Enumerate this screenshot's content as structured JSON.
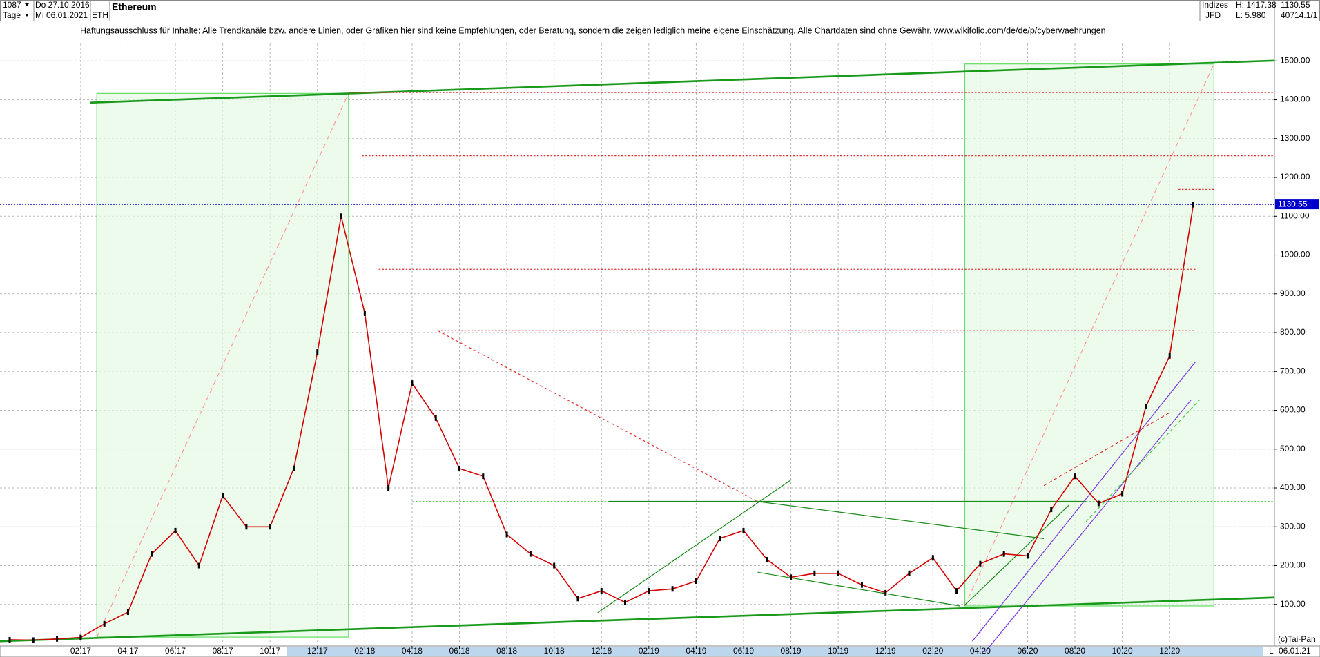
{
  "header": {
    "bars": "1087",
    "from": "Do 27.10.2016",
    "period": "Tage",
    "to": "Mi 06.01.2021",
    "symbol": "ETH",
    "name": "Ethereum",
    "group": "Indizes",
    "source": "JFD",
    "high": "H: 1417.38",
    "low": "L: 5.980",
    "last": "1130.55",
    "volume": "40714.1/1"
  },
  "disclaimer": "Haftungsausschluss für Inhalte: Alle Trendkanäle bzw. andere Linien, oder Grafiken hier sind keine Empfehlungen, oder Beratung, sondern die zeigen lediglich meine eigene Einschätzung. Alle Chartdaten sind ohne Gewähr.  www.wikifolio.com/de/de/p/cyberwaehrungen",
  "footer": {
    "copyright": "(c)Tai-Pan",
    "date": "06.01.21",
    "scale": "L"
  },
  "chart_data": {
    "type": "line",
    "color": "#d40000",
    "x": [
      "11.16",
      "12.16",
      "01.17",
      "02.17",
      "03.17",
      "04.17",
      "05.17",
      "06.17",
      "07.17",
      "08.17",
      "09.17",
      "10.17",
      "11.17",
      "12.17",
      "01.18",
      "02.18",
      "03.18",
      "04.18",
      "05.18",
      "06.18",
      "07.18",
      "08.18",
      "09.18",
      "10.18",
      "11.18",
      "12.18",
      "01.19",
      "02.19",
      "03.19",
      "04.19",
      "05.19",
      "06.19",
      "07.19",
      "08.19",
      "09.19",
      "10.19",
      "11.19",
      "12.19",
      "01.20",
      "02.20",
      "03.20",
      "04.20",
      "05.20",
      "06.20",
      "07.20",
      "08.20",
      "09.20",
      "10.20",
      "11.20",
      "12.20",
      "01.21"
    ],
    "values": [
      9,
      8,
      11,
      15,
      50,
      80,
      230,
      290,
      200,
      380,
      300,
      300,
      450,
      750,
      1100,
      850,
      400,
      670,
      580,
      450,
      430,
      280,
      230,
      200,
      115,
      135,
      105,
      135,
      140,
      160,
      270,
      290,
      215,
      170,
      180,
      180,
      150,
      130,
      180,
      220,
      135,
      205,
      230,
      225,
      345,
      430,
      360,
      385,
      610,
      740,
      1130
    ],
    "xticks": [
      "02.17",
      "04.17",
      "06.17",
      "08.17",
      "10.17",
      "12.17",
      "02.18",
      "04.18",
      "06.18",
      "08.18",
      "10.18",
      "12.18",
      "02.19",
      "04.19",
      "06.19",
      "08.19",
      "10.19",
      "12.19",
      "02.20",
      "04.20",
      "06.20",
      "08.20",
      "10.20",
      "12.20"
    ],
    "ylim": [
      0,
      1545
    ],
    "yticks": [
      {
        "value": 100,
        "label": "100.00"
      },
      {
        "value": 200,
        "label": "200.00"
      },
      {
        "value": 300,
        "label": "300.00"
      },
      {
        "value": 400,
        "label": "400.00"
      },
      {
        "value": 500,
        "label": "500.00"
      },
      {
        "value": 600,
        "label": "600.00"
      },
      {
        "value": 700,
        "label": "700.00"
      },
      {
        "value": 800,
        "label": "800.00"
      },
      {
        "value": 900,
        "label": "900.00"
      },
      {
        "value": 1000,
        "label": "1000.00"
      },
      {
        "value": 1100,
        "label": "1100.00"
      },
      {
        "value": 1200,
        "label": "1200.00"
      },
      {
        "value": 1300,
        "label": "1300.00"
      },
      {
        "value": 1400,
        "label": "1400.00"
      },
      {
        "value": 1500,
        "label": "1500.00"
      }
    ],
    "grid": true,
    "price_line": 1130.55,
    "price_line_color": "#0000cc"
  }
}
